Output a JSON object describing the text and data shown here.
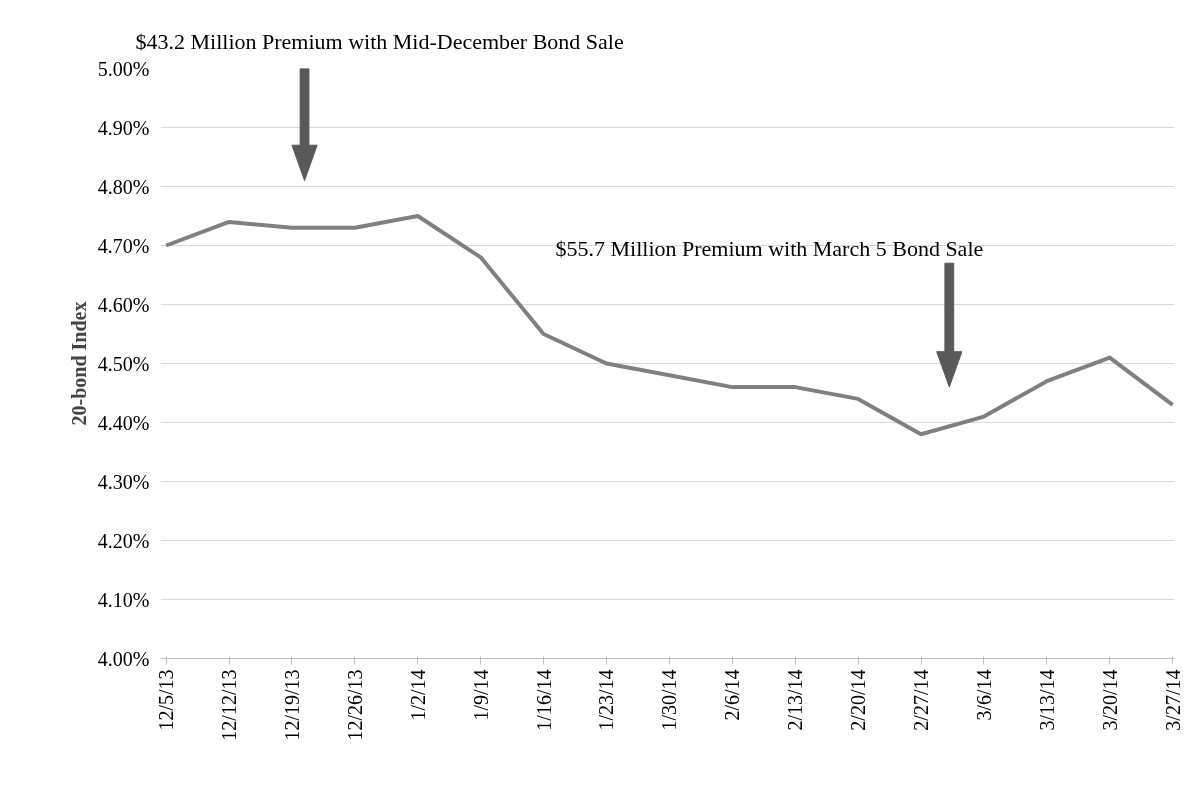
{
  "chart_data": {
    "type": "line",
    "ylabel": "20-bond Index",
    "annotations": [
      "$43.2 Million Premium with Mid-December Bond Sale",
      "$55.7 Million Premium with March 5 Bond Sale"
    ],
    "categories": [
      "12/5/13",
      "12/12/13",
      "12/19/13",
      "12/26/13",
      "1/2/14",
      "1/9/14",
      "1/16/14",
      "1/23/14",
      "1/30/14",
      "2/6/14",
      "2/13/14",
      "2/20/14",
      "2/27/14",
      "3/6/14",
      "3/13/14",
      "3/20/14",
      "3/27/14"
    ],
    "series": [
      {
        "color": "#808080",
        "values": [
          4.7,
          4.74,
          4.73,
          4.73,
          4.75,
          4.68,
          4.55,
          4.5,
          4.48,
          4.46,
          4.46,
          4.44,
          4.38,
          4.41,
          4.47,
          4.51,
          4.43
        ]
      }
    ],
    "ylim": [
      4.0,
      5.0
    ],
    "yticks": [
      {
        "value": 4.0,
        "label": "4.00%"
      },
      {
        "value": 4.1,
        "label": "4.10%"
      },
      {
        "value": 4.2,
        "label": "4.20%"
      },
      {
        "value": 4.3,
        "label": "4.30%"
      },
      {
        "value": 4.4,
        "label": "4.40%"
      },
      {
        "value": 4.5,
        "label": "4.50%"
      },
      {
        "value": 4.6,
        "label": "4.60%"
      },
      {
        "value": 4.7,
        "label": "4.70%"
      },
      {
        "value": 4.8,
        "label": "4.80%"
      },
      {
        "value": 4.9,
        "label": "4.90%"
      },
      {
        "value": 5.0,
        "label": "5.00%"
      }
    ],
    "grid": "y",
    "marker": "none",
    "line_style": "solid"
  }
}
